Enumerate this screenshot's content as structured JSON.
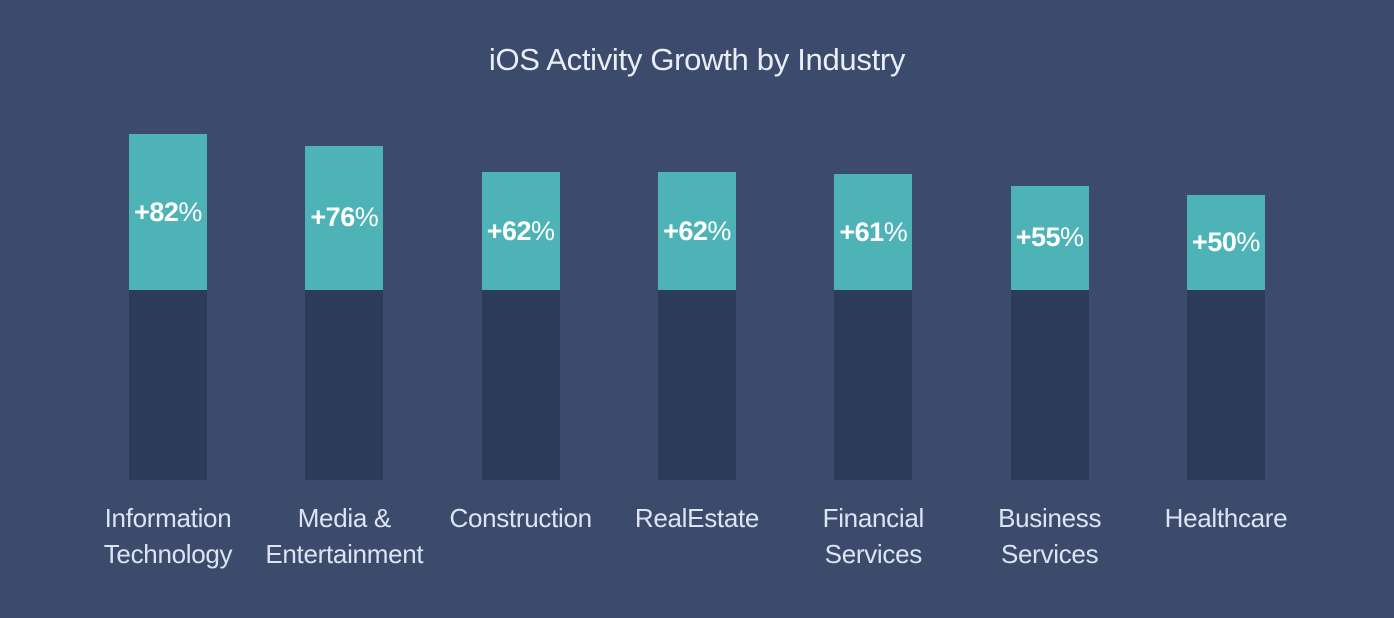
{
  "page": {
    "background_color": "#3C4B6C"
  },
  "chart_data": {
    "type": "bar",
    "title": "iOS Activity Growth by Industry",
    "categories": [
      "Information Technology",
      "Media & Entertainment",
      "Construction",
      "RealEstate",
      "Financial Services",
      "Business Services",
      "Healthcare"
    ],
    "values": [
      82,
      76,
      62,
      62,
      61,
      55,
      50
    ],
    "value_labels": [
      "+82%",
      "+76%",
      "+62%",
      "+62%",
      "+61%",
      "+55%",
      "+50%"
    ],
    "label_lines": [
      [
        "Information",
        "Technology"
      ],
      [
        "Media &",
        "Entertainment"
      ],
      [
        "Construction"
      ],
      [
        "RealEstate"
      ],
      [
        "Financial",
        "Services"
      ],
      [
        "Business",
        "Services"
      ],
      [
        "Healthcare"
      ]
    ],
    "unit": "%",
    "baseline_value": 100,
    "xlabel": "",
    "ylabel": "",
    "legend": "none",
    "axes_visible": false,
    "grid": false,
    "colors": {
      "growth_segment": "#4DB3B7",
      "baseline_segment": "#2C3B59",
      "value_label": "#FFFFFF",
      "category_label": "#DCE4F2",
      "title": "#E9EEF6",
      "background": "#3C4B6C"
    }
  }
}
